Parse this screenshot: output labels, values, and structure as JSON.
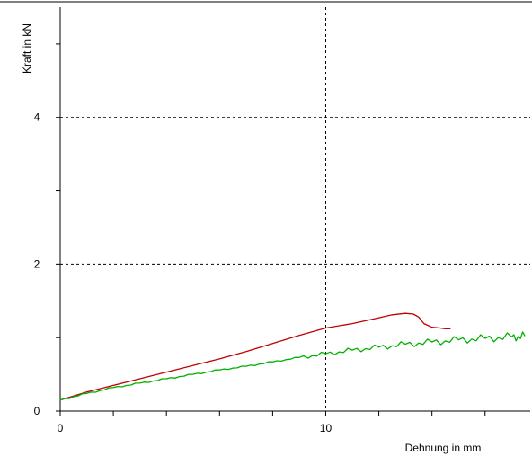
{
  "chart_data": {
    "type": "line",
    "title": "",
    "xlabel": "Dehnung in mm",
    "ylabel": "Kraft in kN",
    "xlim": [
      0,
      17.7
    ],
    "ylim": [
      0,
      5.5
    ],
    "x_ticks": [
      0,
      10
    ],
    "y_ticks": [
      0,
      2,
      4
    ],
    "x_minor_step": 2,
    "y_minor_step": 1,
    "grid": "dashed at labeled ticks",
    "colors": {
      "axis": "#000000",
      "grid": "#000000",
      "series_red": "#c00000",
      "series_green": "#00b000"
    },
    "series": [
      {
        "color": "#c00000",
        "x": [
          0,
          1,
          2,
          3,
          4,
          5,
          6,
          7,
          8,
          9,
          10,
          11,
          12,
          12.5,
          13,
          13.3,
          13.5,
          13.7,
          14.0,
          14.3,
          14.5,
          14.7
        ],
        "y": [
          0.15,
          0.26,
          0.35,
          0.44,
          0.53,
          0.62,
          0.71,
          0.81,
          0.92,
          1.03,
          1.13,
          1.19,
          1.27,
          1.31,
          1.33,
          1.32,
          1.28,
          1.19,
          1.14,
          1.13,
          1.12,
          1.12
        ]
      },
      {
        "color": "#00b000",
        "sawtooth": true,
        "x": [
          0,
          1,
          2,
          3,
          4,
          5,
          6,
          7,
          8,
          9,
          10,
          11,
          12,
          13,
          14,
          15,
          16,
          17,
          17.5
        ],
        "y": [
          0.15,
          0.24,
          0.32,
          0.38,
          0.44,
          0.5,
          0.56,
          0.61,
          0.67,
          0.73,
          0.78,
          0.83,
          0.87,
          0.91,
          0.94,
          0.97,
          0.99,
          1.01,
          1.02
        ]
      }
    ]
  }
}
